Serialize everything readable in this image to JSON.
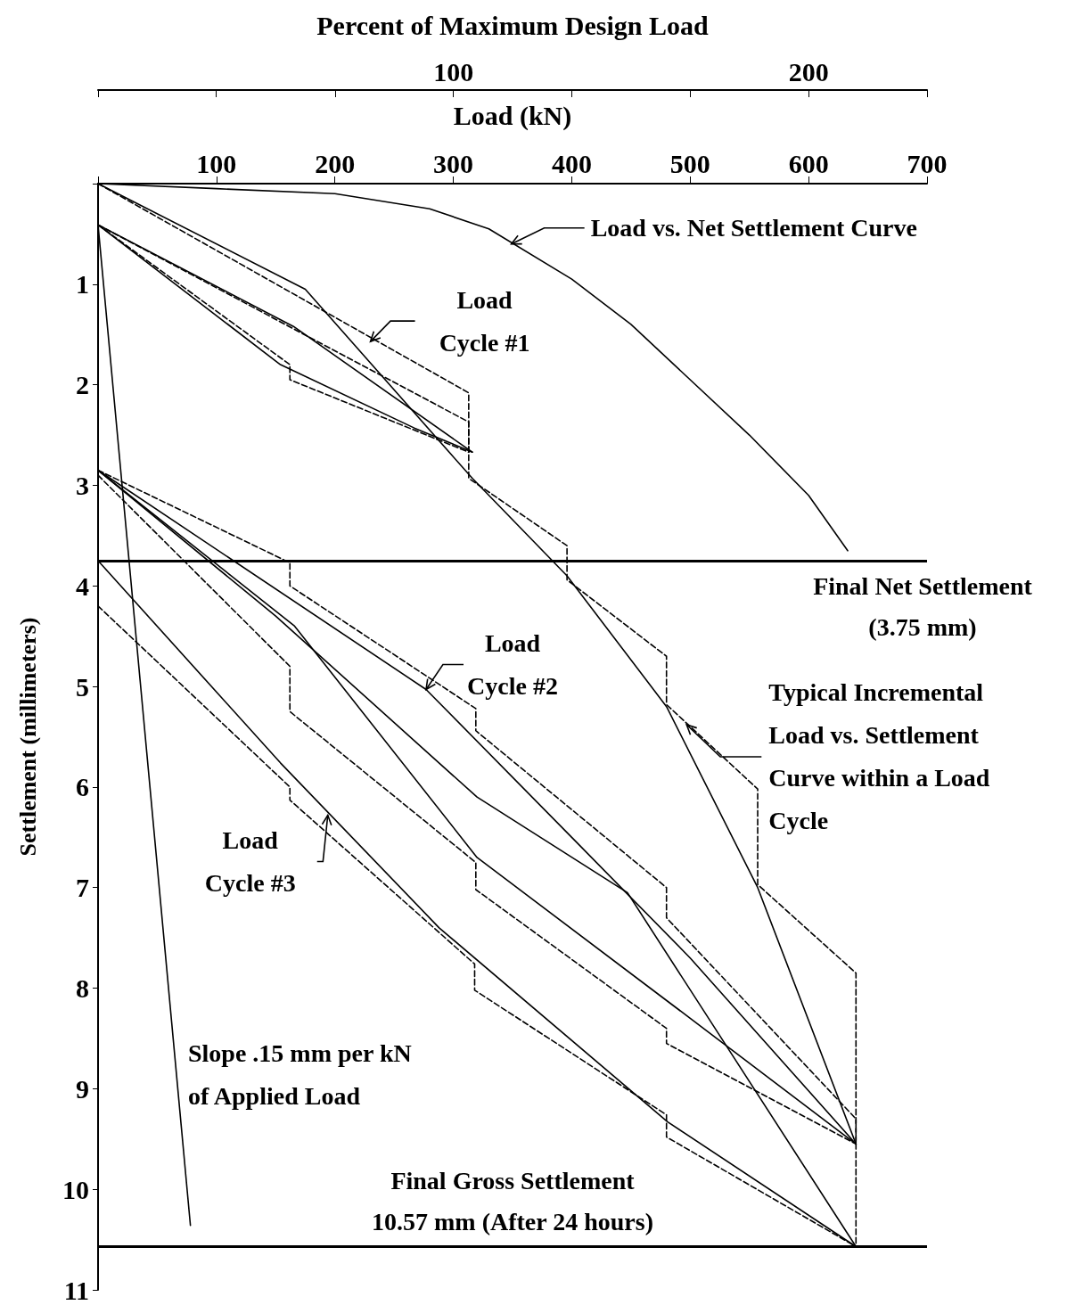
{
  "chart_data": {
    "type": "line",
    "xlabel": "Load (kN)",
    "ylabel": "Settlement (millimeters)",
    "x2label": "Percent of Maximum Design Load",
    "xlim": [
      0,
      700
    ],
    "xticks": [
      {
        "value": 0,
        "label": null
      },
      100,
      200,
      300,
      400,
      500,
      600,
      700
    ],
    "x2lim": [
      0,
      233.3
    ],
    "x2ticks": [
      {
        "value": 0,
        "label": null
      },
      {
        "value": 33.3,
        "label": null
      },
      {
        "value": 66.7,
        "label": null
      },
      100,
      {
        "value": 133.3,
        "label": null
      },
      {
        "value": 166.7,
        "label": null
      },
      200,
      {
        "value": 233.3,
        "label": null
      }
    ],
    "ylim": [
      11,
      0
    ],
    "yticks": [
      {
        "value": 0,
        "label": null
      },
      1,
      2,
      3,
      4,
      5,
      6,
      7,
      8,
      9,
      10,
      11
    ],
    "marker": "none",
    "line_style": "solid",
    "grid": false,
    "series": [
      {
        "color": "#000000",
        "x": [
          0,
          100,
          200,
          280,
          330,
          400,
          450,
          500,
          550,
          600,
          633
        ],
        "values": [
          0,
          0.05,
          0.1,
          0.25,
          0.45,
          0.95,
          1.4,
          1.95,
          2.5,
          3.1,
          3.65
        ]
      },
      {
        "color": "#000000",
        "x": [
          0,
          175,
          316,
          396,
          480,
          557,
          640
        ],
        "values": [
          0,
          1.05,
          2.93,
          3.9,
          5.2,
          7.0,
          9.55
        ]
      },
      {
        "color": "#000000",
        "x": [
          0,
          165,
          316
        ],
        "values": [
          0.41,
          1.42,
          2.67
        ]
      },
      {
        "color": "#000000",
        "x": [
          0,
          154,
          267,
          316
        ],
        "values": [
          0.41,
          1.8,
          2.43,
          2.67
        ]
      },
      {
        "color": "#000000",
        "x": [
          0,
          78
        ],
        "values": [
          0.41,
          10.36
        ]
      },
      {
        "color": "#000000",
        "x": [
          0,
          277,
          400,
          500,
          640
        ],
        "values": [
          2.85,
          5.03,
          6.5,
          7.7,
          9.55
        ]
      },
      {
        "color": "#000000",
        "x": [
          0,
          166,
          320,
          500,
          640
        ],
        "values": [
          2.85,
          4.4,
          6.7,
          8.3,
          9.55
        ]
      },
      {
        "color": "#000000",
        "x": [
          0,
          154,
          288,
          481,
          640
        ],
        "values": [
          3.75,
          5.76,
          7.4,
          9.33,
          10.57
        ]
      },
      {
        "color": "#000000",
        "x": [
          0,
          150,
          320,
          447,
          640
        ],
        "values": [
          2.85,
          4.3,
          6.1,
          7.05,
          10.57
        ]
      },
      {
        "color": "#000000",
        "line_style": "dashed",
        "x": [
          0,
          313,
          313,
          396,
          396,
          480,
          480,
          557,
          557,
          640,
          640
        ],
        "values": [
          0,
          2.08,
          2.93,
          3.6,
          3.94,
          4.7,
          5.18,
          6.02,
          6.97,
          7.85,
          10.57
        ]
      },
      {
        "color": "#000000",
        "line_style": "dashed",
        "x": [
          0,
          313,
          313
        ],
        "values": [
          0.41,
          2.37,
          2.67
        ]
      },
      {
        "color": "#000000",
        "line_style": "dashed",
        "x": [
          0,
          162,
          162,
          313
        ],
        "values": [
          0.41,
          1.8,
          1.95,
          2.67
        ]
      },
      {
        "color": "#000000",
        "line_style": "dashed",
        "x": [
          0,
          162,
          162,
          319,
          319,
          480,
          480,
          640,
          640
        ],
        "values": [
          2.85,
          3.77,
          4.0,
          5.22,
          5.44,
          7.0,
          7.3,
          9.3,
          9.55
        ]
      },
      {
        "color": "#000000",
        "line_style": "dashed",
        "x": [
          0,
          162,
          162,
          319,
          319,
          480,
          480,
          640
        ],
        "values": [
          2.9,
          4.8,
          5.25,
          6.75,
          7.02,
          8.4,
          8.55,
          9.55
        ]
      },
      {
        "color": "#000000",
        "line_style": "dashed",
        "x": [
          0,
          162,
          162,
          318,
          318,
          480,
          480,
          640
        ],
        "values": [
          4.2,
          6.0,
          6.13,
          7.76,
          8.02,
          9.26,
          9.48,
          10.57
        ]
      }
    ],
    "ref_lines": [
      {
        "axis": "y",
        "value": 3.75,
        "label": "Final Net Settlement\n(3.75 mm)",
        "color": "#000000"
      },
      {
        "axis": "y",
        "value": 10.57,
        "label": "Final Gross Settlement\n10.57 mm (After 24 hours)",
        "color": "#000000"
      }
    ],
    "annotations": [
      {
        "text": "Load vs. Net Settlement Curve",
        "x": 349,
        "y": 0.6
      },
      {
        "text": "Load\nCycle #1",
        "x": 230,
        "y": 1.57
      },
      {
        "text": "Load\nCycle #2",
        "x": 277,
        "y": 5.03
      },
      {
        "text": "Load\nCycle #3",
        "x": 194,
        "y": 6.28
      },
      {
        "text": "Typical Incremental\nLoad vs. Settlement\nCurve within a Load\nCycle",
        "x": 497,
        "y": 5.38
      },
      {
        "text": "Slope .15 mm per kN\nof Applied Load",
        "x": 67,
        "y": 9.0
      }
    ]
  }
}
